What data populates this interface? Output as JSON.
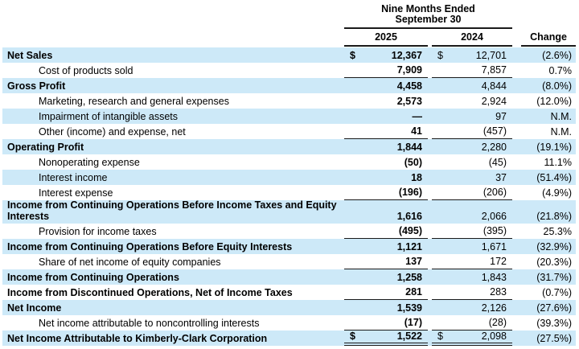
{
  "header": {
    "period_line1": "Nine Months Ended",
    "period_line2": "September 30",
    "col_2025": "2025",
    "col_2024": "2024",
    "col_change": "Change"
  },
  "symbols": {
    "dollar": "$"
  },
  "colors": {
    "stripe": "#cde9f8",
    "rule": "#1a1a1a"
  },
  "table": {
    "rows": [
      {
        "label": "Net Sales",
        "bold": true,
        "indent": false,
        "dollar": true,
        "v2025": "12,367",
        "v2024": "12,701",
        "change": "(2.6%)",
        "underline": "none"
      },
      {
        "label": "Cost of products sold",
        "bold": false,
        "indent": true,
        "dollar": false,
        "v2025": "7,909",
        "v2024": "7,857",
        "change": "0.7%",
        "underline": "single"
      },
      {
        "label": "Gross Profit",
        "bold": true,
        "indent": false,
        "dollar": false,
        "v2025": "4,458",
        "v2024": "4,844",
        "change": "(8.0%)",
        "underline": "none"
      },
      {
        "label": "Marketing, research and general expenses",
        "bold": false,
        "indent": true,
        "dollar": false,
        "v2025": "2,573",
        "v2024": "2,924",
        "change": "(12.0%)",
        "underline": "none"
      },
      {
        "label": "Impairment of intangible assets",
        "bold": false,
        "indent": true,
        "dollar": false,
        "v2025": "—",
        "v2024": "97",
        "change": "N.M.",
        "underline": "none"
      },
      {
        "label": "Other (income) and expense, net",
        "bold": false,
        "indent": true,
        "dollar": false,
        "v2025": "41",
        "v2024": "(457)",
        "change": "N.M.",
        "underline": "single"
      },
      {
        "label": "Operating Profit",
        "bold": true,
        "indent": false,
        "dollar": false,
        "v2025": "1,844",
        "v2024": "2,280",
        "change": "(19.1%)",
        "underline": "none"
      },
      {
        "label": "Nonoperating expense",
        "bold": false,
        "indent": true,
        "dollar": false,
        "v2025": "(50)",
        "v2024": "(45)",
        "change": "11.1%",
        "underline": "none"
      },
      {
        "label": "Interest income",
        "bold": false,
        "indent": true,
        "dollar": false,
        "v2025": "18",
        "v2024": "37",
        "change": "(51.4%)",
        "underline": "none"
      },
      {
        "label": "Interest expense",
        "bold": false,
        "indent": true,
        "dollar": false,
        "v2025": "(196)",
        "v2024": "(206)",
        "change": "(4.9%)",
        "underline": "single"
      },
      {
        "label": "Income from Continuing Operations Before Income Taxes and Equity Interests",
        "bold": true,
        "indent": false,
        "dollar": false,
        "v2025": "1,616",
        "v2024": "2,066",
        "change": "(21.8%)",
        "underline": "none"
      },
      {
        "label": "Provision for income taxes",
        "bold": false,
        "indent": true,
        "dollar": false,
        "v2025": "(495)",
        "v2024": "(395)",
        "change": "25.3%",
        "underline": "single"
      },
      {
        "label": "Income from Continuing Operations Before Equity Interests",
        "bold": true,
        "indent": false,
        "dollar": false,
        "v2025": "1,121",
        "v2024": "1,671",
        "change": "(32.9%)",
        "underline": "none"
      },
      {
        "label": "Share of net income of equity companies",
        "bold": false,
        "indent": true,
        "dollar": false,
        "v2025": "137",
        "v2024": "172",
        "change": "(20.3%)",
        "underline": "single"
      },
      {
        "label": "Income from Continuing Operations",
        "bold": true,
        "indent": false,
        "dollar": false,
        "v2025": "1,258",
        "v2024": "1,843",
        "change": "(31.7%)",
        "underline": "none"
      },
      {
        "label": "Income from Discontinued Operations, Net of Income Taxes",
        "bold": true,
        "indent": false,
        "dollar": false,
        "v2025": "281",
        "v2024": "283",
        "change": "(0.7%)",
        "underline": "single"
      },
      {
        "label": "Net Income",
        "bold": true,
        "indent": false,
        "dollar": false,
        "v2025": "1,539",
        "v2024": "2,126",
        "change": "(27.6%)",
        "underline": "none"
      },
      {
        "label": "Net income attributable to noncontrolling interests",
        "bold": false,
        "indent": true,
        "dollar": false,
        "v2025": "(17)",
        "v2024": "(28)",
        "change": "(39.3%)",
        "underline": "single"
      },
      {
        "label": "Net Income Attributable to Kimberly-Clark Corporation",
        "bold": true,
        "indent": false,
        "dollar": true,
        "v2025": "1,522",
        "v2024": "2,098",
        "change": "(27.5%)",
        "underline": "double"
      }
    ]
  }
}
